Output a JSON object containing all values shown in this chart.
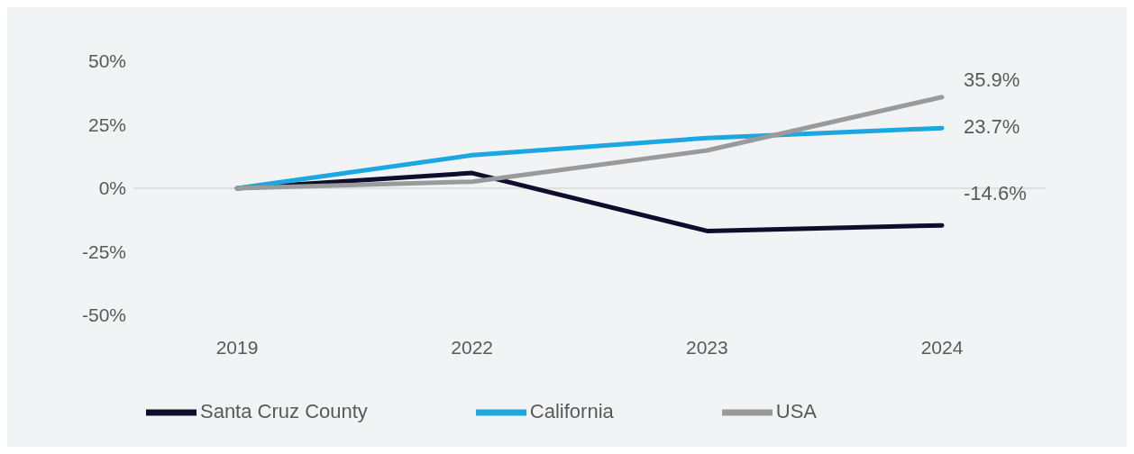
{
  "chart_data": {
    "type": "line",
    "categories": [
      "2019",
      "2022",
      "2023",
      "2024"
    ],
    "series": [
      {
        "name": "Santa Cruz County",
        "color": "#0e0e2c",
        "values": [
          0,
          6,
          -16.8,
          -14.6
        ],
        "value_labels": [
          null,
          null,
          null,
          "-14.6%"
        ]
      },
      {
        "name": "California",
        "color": "#1aa7e2",
        "values": [
          0,
          13,
          19.8,
          23.7
        ],
        "value_labels": [
          null,
          null,
          null,
          "23.7%"
        ]
      },
      {
        "name": "USA",
        "color": "#9a9a9a",
        "values": [
          0,
          2.6,
          14.9,
          35.9
        ],
        "value_labels": [
          null,
          null,
          null,
          "35.9%"
        ]
      }
    ],
    "ylim": [
      -50,
      50
    ],
    "yticks": [
      {
        "value": -50,
        "label": "-50%"
      },
      {
        "value": -25,
        "label": "-25%"
      },
      {
        "value": 0,
        "label": "0%"
      },
      {
        "value": 25,
        "label": "25%"
      },
      {
        "value": 50,
        "label": "50%"
      }
    ],
    "ref_lines": [
      {
        "axis": "y",
        "value": 0,
        "color": "#d9d9d9"
      }
    ],
    "grid": false,
    "legend": "bottom",
    "marker": "none",
    "line_style": "solid"
  }
}
